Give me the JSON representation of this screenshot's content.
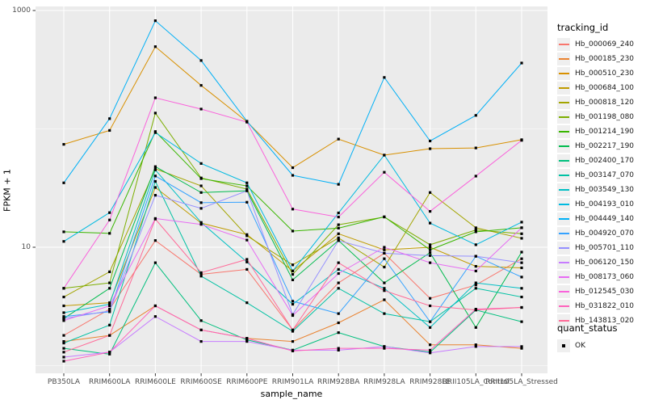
{
  "chart_data": {
    "type": "line",
    "x_label": "sample_name",
    "y_label": "FPKM + 1",
    "y_scale": "log10",
    "ylim": [
      1,
      1000
    ],
    "y_ticks": [
      {
        "label": "1000",
        "value": 1000
      },
      {
        "label": "10",
        "value": 10
      }
    ],
    "y_minor_breaks": [
      100,
      1
    ],
    "grid": true,
    "legend_position": "right",
    "categories": [
      "PB350LA",
      "RRIM600LA",
      "RRIM600LE",
      "RRIM600SE",
      "RRIM600PE",
      "RRIM901LA",
      "RRIM928BA",
      "RRIM928LA",
      "RRIM928LE",
      "RRII105LA_Control",
      "RRII105LA_Stressed"
    ],
    "series": [
      {
        "name": "Hb_000069_240",
        "color": "#F8766D",
        "values": [
          1.8,
          3.0,
          11.4,
          5.9,
          6.5,
          2.0,
          5.0,
          8.9,
          3.7,
          4.8,
          8.0
        ]
      },
      {
        "name": "Hb_000185_230",
        "color": "#EA8331",
        "values": [
          1.6,
          1.8,
          3.2,
          2.0,
          1.7,
          1.6,
          2.3,
          3.6,
          1.5,
          1.5,
          1.4
        ]
      },
      {
        "name": "Hb_000510_230",
        "color": "#D89000",
        "values": [
          74,
          97,
          495,
          233,
          115,
          47,
          82,
          60,
          68,
          69,
          81
        ]
      },
      {
        "name": "Hb_000684_100",
        "color": "#C09B00",
        "values": [
          3.2,
          3.4,
          32,
          16,
          12.8,
          6.3,
          13,
          9.5,
          10,
          6.9,
          6.7
        ]
      },
      {
        "name": "Hb_000818_120",
        "color": "#A3A500",
        "values": [
          3.8,
          6.2,
          46,
          33,
          12.5,
          7.1,
          12,
          6.8,
          29,
          14.6,
          11.9
        ]
      },
      {
        "name": "Hb_001198_080",
        "color": "#7CAE00",
        "values": [
          4.5,
          5.0,
          136,
          38.5,
          31,
          5.9,
          15.5,
          18,
          10.5,
          14,
          13
        ]
      },
      {
        "name": "Hb_001214_190",
        "color": "#39B600",
        "values": [
          13.5,
          13.1,
          95,
          38,
          33,
          13.7,
          14.5,
          18.1,
          9.5,
          13.5,
          14.6
        ]
      },
      {
        "name": "Hb_002217_190",
        "color": "#00BB4E",
        "values": [
          2.5,
          4.5,
          48,
          29,
          30,
          5.3,
          11.4,
          5.0,
          9.0,
          2.1,
          9.1
        ]
      },
      {
        "name": "Hb_002400_170",
        "color": "#00BF7D",
        "values": [
          1.4,
          1.25,
          7.4,
          2.4,
          1.65,
          1.35,
          1.9,
          1.45,
          1.3,
          2.95,
          2.35
        ]
      },
      {
        "name": "Hb_003147_070",
        "color": "#00C1A3",
        "values": [
          1.55,
          2.2,
          36,
          5.7,
          3.4,
          1.95,
          4.5,
          2.75,
          2.35,
          4.5,
          3.8
        ]
      },
      {
        "name": "Hb_003549_130",
        "color": "#00BFC4",
        "values": [
          2.8,
          3.3,
          45,
          16.2,
          7.5,
          3.3,
          6.5,
          4.5,
          2.1,
          5.0,
          4.5
        ]
      },
      {
        "name": "Hb_004193_010",
        "color": "#00BAE0",
        "values": [
          11.2,
          19.6,
          93,
          51,
          35,
          6.3,
          19.5,
          60,
          16,
          10.5,
          16.3
        ]
      },
      {
        "name": "Hb_004449_140",
        "color": "#00B0F6",
        "values": [
          35,
          122,
          820,
          378,
          116,
          40.5,
          34,
          272,
          79,
          130,
          360
        ]
      },
      {
        "name": "Hb_004920_070",
        "color": "#35A2FF",
        "values": [
          2.6,
          2.85,
          40,
          23.8,
          24,
          3.5,
          2.75,
          8.0,
          2.35,
          8.4,
          5.6
        ]
      },
      {
        "name": "Hb_005701_110",
        "color": "#9590FF",
        "values": [
          2.5,
          2.9,
          27.5,
          21.3,
          30,
          2.7,
          11.4,
          8.9,
          8.5,
          8.4,
          7.4
        ]
      },
      {
        "name": "Hb_006120_150",
        "color": "#C77CFF",
        "values": [
          1.18,
          1.3,
          2.6,
          1.6,
          1.6,
          1.35,
          1.35,
          1.45,
          1.28,
          1.45,
          1.45
        ]
      },
      {
        "name": "Hb_008173_060",
        "color": "#E76BF3",
        "values": [
          2.4,
          3.2,
          17.5,
          15.6,
          11.5,
          2.65,
          6.0,
          10.0,
          7.4,
          6.3,
          14.6
        ]
      },
      {
        "name": "Hb_012545_030",
        "color": "#FA62DB",
        "values": [
          4.5,
          17,
          183,
          147,
          114,
          21,
          18,
          43,
          20.1,
          39.9,
          80
        ]
      },
      {
        "name": "Hb_031822_010",
        "color": "#FF62BC",
        "values": [
          1.09,
          1.3,
          3.2,
          2.0,
          1.7,
          1.33,
          1.4,
          1.4,
          1.35,
          3.0,
          3.1
        ]
      },
      {
        "name": "Hb_143813_020",
        "color": "#FF6A98",
        "values": [
          1.3,
          1.8,
          17.3,
          6.1,
          7.9,
          2.0,
          7.4,
          4.3,
          3.2,
          2.95,
          3.1
        ]
      }
    ]
  },
  "legend": {
    "tracking_title": "tracking_id",
    "quant_title": "quant_status",
    "quant_items": [
      {
        "label": "OK",
        "marker": "black-point"
      }
    ]
  },
  "colors": {
    "panel_background": "#EBEBEB",
    "grid_major": "#FFFFFF",
    "grid_minor": "#FFFFFF",
    "axis_text": "#4d4d4d",
    "point": "#000000",
    "legend_key_background": "#EFEFEF"
  }
}
